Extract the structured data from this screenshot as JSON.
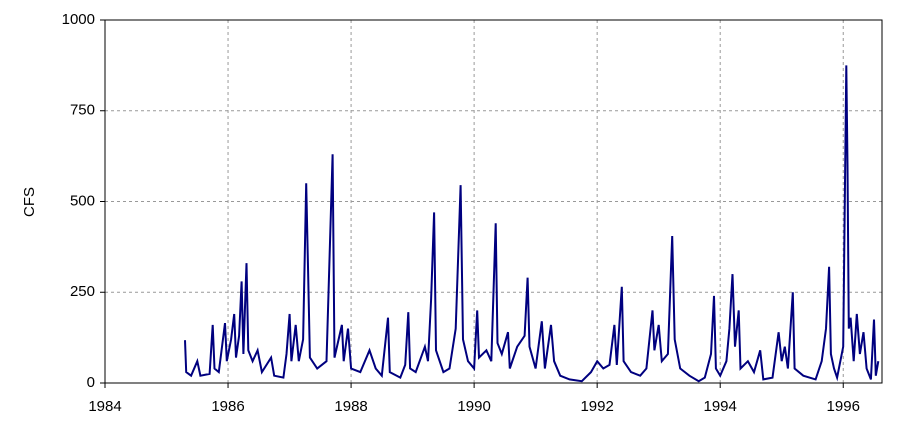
{
  "chart_data": {
    "type": "line",
    "y_label": "CFS",
    "color": "#00007f",
    "grid": true,
    "xlim": [
      1984,
      1996.63
    ],
    "xticks": [
      1984,
      1986,
      1988,
      1990,
      1992,
      1994,
      1996
    ],
    "ylim": [
      0,
      1000
    ],
    "yticks": [
      0,
      250,
      500,
      750,
      1000
    ],
    "x": [
      1985.3,
      1985.32,
      1985.4,
      1985.5,
      1985.55,
      1985.7,
      1985.75,
      1985.78,
      1985.85,
      1985.95,
      1985.98,
      1986.05,
      1986.1,
      1986.13,
      1986.18,
      1986.22,
      1986.25,
      1986.3,
      1986.33,
      1986.4,
      1986.48,
      1986.55,
      1986.7,
      1986.75,
      1986.9,
      1986.95,
      1987.0,
      1987.03,
      1987.1,
      1987.15,
      1987.22,
      1987.27,
      1987.3,
      1987.33,
      1987.45,
      1987.6,
      1987.7,
      1987.73,
      1987.85,
      1987.88,
      1987.95,
      1988.0,
      1988.15,
      1988.3,
      1988.4,
      1988.5,
      1988.6,
      1988.63,
      1988.8,
      1988.88,
      1988.93,
      1988.96,
      1989.05,
      1989.2,
      1989.25,
      1989.3,
      1989.35,
      1989.38,
      1989.5,
      1989.6,
      1989.7,
      1989.78,
      1989.82,
      1989.9,
      1990.0,
      1990.05,
      1990.08,
      1990.2,
      1990.28,
      1990.35,
      1990.38,
      1990.45,
      1990.55,
      1990.58,
      1990.7,
      1990.82,
      1990.87,
      1990.9,
      1991.0,
      1991.1,
      1991.15,
      1991.25,
      1991.3,
      1991.4,
      1991.55,
      1991.75,
      1991.9,
      1992.0,
      1992.1,
      1992.2,
      1992.28,
      1992.32,
      1992.4,
      1992.43,
      1992.55,
      1992.7,
      1992.8,
      1992.9,
      1992.93,
      1993.0,
      1993.05,
      1993.15,
      1993.22,
      1993.26,
      1993.35,
      1993.5,
      1993.65,
      1993.75,
      1993.85,
      1993.9,
      1993.93,
      1994.0,
      1994.1,
      1994.15,
      1994.2,
      1994.24,
      1994.3,
      1994.33,
      1994.45,
      1994.55,
      1994.65,
      1994.7,
      1994.85,
      1994.95,
      1995.0,
      1995.05,
      1995.1,
      1995.18,
      1995.21,
      1995.35,
      1995.55,
      1995.65,
      1995.72,
      1995.77,
      1995.8,
      1995.85,
      1995.9,
      1996.0,
      1996.05,
      1996.07,
      1996.09,
      1996.12,
      1996.17,
      1996.22,
      1996.27,
      1996.33,
      1996.38,
      1996.45,
      1996.5,
      1996.53,
      1996.57
    ],
    "values": [
      118,
      30,
      20,
      60,
      20,
      25,
      160,
      40,
      30,
      165,
      60,
      120,
      190,
      70,
      130,
      280,
      80,
      330,
      90,
      60,
      90,
      30,
      70,
      20,
      15,
      80,
      190,
      60,
      160,
      60,
      120,
      550,
      320,
      70,
      40,
      60,
      630,
      70,
      160,
      60,
      150,
      40,
      30,
      90,
      40,
      20,
      180,
      30,
      15,
      50,
      195,
      40,
      30,
      100,
      60,
      230,
      470,
      90,
      30,
      40,
      150,
      545,
      120,
      60,
      40,
      200,
      70,
      90,
      60,
      440,
      110,
      80,
      140,
      40,
      100,
      130,
      290,
      100,
      40,
      170,
      40,
      160,
      60,
      20,
      10,
      5,
      30,
      60,
      40,
      50,
      160,
      50,
      265,
      60,
      30,
      20,
      40,
      200,
      90,
      160,
      60,
      80,
      405,
      120,
      40,
      20,
      5,
      15,
      80,
      240,
      40,
      20,
      60,
      150,
      300,
      100,
      200,
      40,
      60,
      30,
      90,
      10,
      15,
      140,
      60,
      100,
      40,
      250,
      40,
      20,
      10,
      60,
      150,
      320,
      80,
      40,
      15,
      100,
      875,
      600,
      150,
      180,
      60,
      190,
      80,
      140,
      40,
      10,
      175,
      20,
      60
    ]
  }
}
